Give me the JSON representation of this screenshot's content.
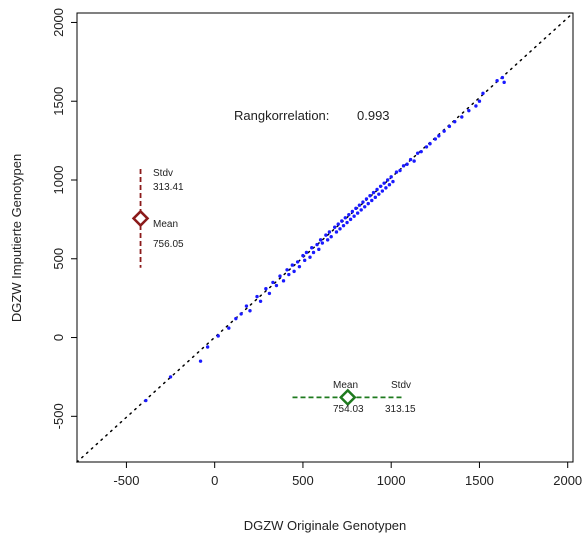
{
  "chart_data": {
    "type": "scatter",
    "xlabel": "DGZW Originale Genotypen",
    "ylabel": "DGZW Imputierte Genotypen",
    "xlim": [
      -780,
      2030
    ],
    "ylim": [
      -790,
      2060
    ],
    "x_ticks": [
      -500,
      0,
      500,
      1000,
      1500,
      2000
    ],
    "x_tick_labels": [
      "-500",
      "0",
      "500",
      "1000",
      "1500",
      "2000"
    ],
    "y_ticks": [
      -500,
      0,
      500,
      1000,
      1500,
      2000
    ],
    "y_tick_labels": [
      "-500",
      "0",
      "500",
      "1000",
      "1500",
      "2000"
    ],
    "grid": false,
    "point_color": "#1a1aff",
    "reference_line": {
      "style": "dotted",
      "from": [
        -780,
        -790
      ],
      "to": [
        2030,
        2060
      ]
    },
    "correlation_label": "Rangkorrelation:",
    "correlation_value": "0.993",
    "points": [
      [
        -390,
        -400
      ],
      [
        -250,
        -250
      ],
      [
        -80,
        -150
      ],
      [
        -40,
        -60
      ],
      [
        20,
        10
      ],
      [
        80,
        60
      ],
      [
        120,
        120
      ],
      [
        150,
        150
      ],
      [
        180,
        200
      ],
      [
        200,
        170
      ],
      [
        240,
        260
      ],
      [
        260,
        230
      ],
      [
        290,
        310
      ],
      [
        310,
        280
      ],
      [
        330,
        350
      ],
      [
        350,
        330
      ],
      [
        370,
        390
      ],
      [
        390,
        360
      ],
      [
        410,
        430
      ],
      [
        420,
        400
      ],
      [
        440,
        460
      ],
      [
        450,
        420
      ],
      [
        470,
        480
      ],
      [
        480,
        450
      ],
      [
        500,
        520
      ],
      [
        510,
        490
      ],
      [
        520,
        540
      ],
      [
        540,
        510
      ],
      [
        550,
        570
      ],
      [
        560,
        540
      ],
      [
        580,
        590
      ],
      [
        590,
        560
      ],
      [
        600,
        620
      ],
      [
        610,
        600
      ],
      [
        630,
        650
      ],
      [
        640,
        620
      ],
      [
        650,
        670
      ],
      [
        660,
        640
      ],
      [
        680,
        700
      ],
      [
        690,
        670
      ],
      [
        700,
        720
      ],
      [
        710,
        690
      ],
      [
        720,
        740
      ],
      [
        730,
        710
      ],
      [
        740,
        760
      ],
      [
        750,
        730
      ],
      [
        760,
        780
      ],
      [
        770,
        750
      ],
      [
        780,
        800
      ],
      [
        790,
        770
      ],
      [
        800,
        820
      ],
      [
        810,
        790
      ],
      [
        820,
        840
      ],
      [
        830,
        810
      ],
      [
        840,
        860
      ],
      [
        850,
        830
      ],
      [
        860,
        880
      ],
      [
        870,
        850
      ],
      [
        880,
        900
      ],
      [
        890,
        870
      ],
      [
        900,
        920
      ],
      [
        910,
        890
      ],
      [
        920,
        940
      ],
      [
        930,
        910
      ],
      [
        940,
        960
      ],
      [
        950,
        930
      ],
      [
        960,
        980
      ],
      [
        970,
        950
      ],
      [
        980,
        1000
      ],
      [
        990,
        970
      ],
      [
        1000,
        1020
      ],
      [
        1010,
        990
      ],
      [
        1030,
        1050
      ],
      [
        1050,
        1060
      ],
      [
        1070,
        1090
      ],
      [
        1090,
        1100
      ],
      [
        1110,
        1130
      ],
      [
        1130,
        1120
      ],
      [
        1150,
        1170
      ],
      [
        1170,
        1180
      ],
      [
        1200,
        1210
      ],
      [
        1220,
        1230
      ],
      [
        1250,
        1260
      ],
      [
        1270,
        1280
      ],
      [
        1300,
        1310
      ],
      [
        1330,
        1340
      ],
      [
        1360,
        1370
      ],
      [
        1400,
        1400
      ],
      [
        1440,
        1440
      ],
      [
        1480,
        1470
      ],
      [
        1500,
        1500
      ],
      [
        1520,
        1550
      ],
      [
        1600,
        1630
      ],
      [
        1630,
        1650
      ],
      [
        1640,
        1620
      ]
    ],
    "y_summary": {
      "stdv_label": "Stdv",
      "stdv_value": "313.41",
      "mean_label": "Mean",
      "mean_value": "756.05",
      "mean": 756.05,
      "sd": 313.41,
      "x_position": -420,
      "color": "#8b1a1a"
    },
    "x_summary": {
      "stdv_label": "Stdv",
      "stdv_value": "313.15",
      "mean_label": "Mean",
      "mean_value": "754.03",
      "mean": 754.03,
      "sd": 313.15,
      "y_position": -380,
      "color": "#1e7a1e"
    }
  }
}
